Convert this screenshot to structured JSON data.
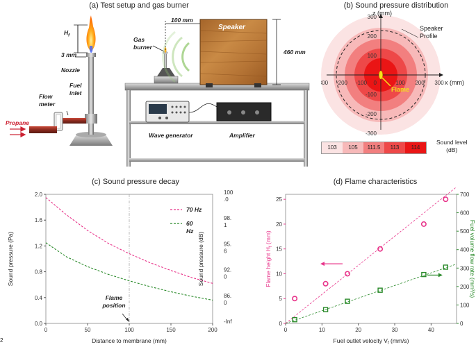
{
  "panel_a": {
    "title": "(a) Test setup and gas burner",
    "labels": {
      "hf": "H",
      "hf_sub": "f",
      "three_mm": "3 mm",
      "nozzle": "Nozzle",
      "flow_meter": "Flow\nmeter",
      "fuel_inlet": "Fuel\ninlet",
      "propane": "Propane",
      "gas_burner": "Gas\nburner",
      "hundred_mm": "100 mm",
      "speaker": "Speaker",
      "four_sixty_mm": "460 mm",
      "wave_generator": "Wave generator",
      "amplifier": "Amplifier"
    }
  },
  "panel_b": {
    "title": "(b) Sound pressure distribution",
    "z_axis_label": "z (mm)",
    "x_axis_label": "x (mm)",
    "speaker_profile": "Speaker\nProfile",
    "flame_label": "Flame",
    "legend_title": "Sound level\n(dB)",
    "levels": [
      "103",
      "105",
      "111.5",
      "113",
      "114"
    ],
    "level_colors": [
      "#fbe3e3",
      "#f7b9b9",
      "#f27f7f",
      "#ee4848",
      "#ea1515"
    ],
    "x_ticks": [
      "-300",
      "-200",
      "-100",
      "0",
      "100",
      "200",
      "300"
    ],
    "z_ticks": [
      "300",
      "200",
      "100",
      "0",
      "-100",
      "-200",
      "-300"
    ]
  },
  "panel_c": {
    "title": "(c) Sound pressure decay",
    "xlabel": "Distance to membrane (mm)",
    "ylabel_left": "Sound pressure (Pa)",
    "ylabel_right": "Sound pressure (dB)",
    "annotation": "Flame\nposition",
    "legend": [
      "70 Hz",
      "60\nHz"
    ],
    "right_ticks": [
      "100\n.0",
      "98.\n1",
      "95.\n6",
      "92.\n0",
      "86.\n0",
      "-Inf"
    ]
  },
  "panel_d": {
    "title": "(d) Flame characteristics",
    "xlabel": "Fuel outlet velocity V",
    "xlabel_sub": "f",
    "xlabel_unit": " (mm/s)",
    "ylabel_left": "Flame height H",
    "ylabel_left_sub": "f",
    "ylabel_left_unit": " (mm)",
    "ylabel_right": "Fuel volume flow rate (mm³/s)"
  },
  "corner_mark": "2",
  "chart_data": [
    {
      "type": "line",
      "title": "(c) Sound pressure decay",
      "xlabel": "Distance to membrane (mm)",
      "ylabel": "Sound pressure (Pa)",
      "ylabel_right": "Sound pressure (dB)",
      "xlim": [
        0,
        200
      ],
      "ylim": [
        0,
        2.0
      ],
      "x_ticks": [
        0,
        50,
        100,
        150,
        200
      ],
      "y_ticks": [
        0,
        0.4,
        0.8,
        1.2,
        1.6,
        2.0
      ],
      "x": [
        0,
        25,
        50,
        75,
        100,
        125,
        150,
        175,
        200
      ],
      "series": [
        {
          "name": "70 Hz",
          "color": "#e8348a",
          "values": [
            1.95,
            1.68,
            1.44,
            1.24,
            1.08,
            0.94,
            0.82,
            0.71,
            0.62
          ]
        },
        {
          "name": "60 Hz",
          "color": "#2a8a2a",
          "values": [
            1.25,
            1.03,
            0.88,
            0.76,
            0.66,
            0.57,
            0.49,
            0.42,
            0.36
          ]
        }
      ],
      "annotation": {
        "text": "Flame position",
        "x": 100
      }
    },
    {
      "type": "scatter",
      "title": "(d) Flame characteristics",
      "xlabel": "Fuel outlet velocity Vf (mm/s)",
      "ylabel": "Flame height Hf (mm)",
      "ylabel_right": "Fuel volume flow rate (mm³/s)",
      "xlim": [
        0,
        47
      ],
      "ylim": [
        0,
        26
      ],
      "ylim_right": [
        0,
        700
      ],
      "x_ticks": [
        0,
        10,
        20,
        30,
        40
      ],
      "y_ticks": [
        0,
        5,
        10,
        15,
        20,
        25
      ],
      "y_ticks_right": [
        0,
        100,
        200,
        300,
        400,
        500,
        600,
        700
      ],
      "series": [
        {
          "name": "Flame height",
          "axis": "left",
          "marker": "circle",
          "color": "#e8348a",
          "x": [
            2.5,
            11,
            17,
            26,
            38,
            44
          ],
          "values": [
            5,
            8,
            10,
            15,
            20,
            25
          ]
        },
        {
          "name": "Fuel volume flow rate",
          "axis": "right",
          "marker": "square",
          "color": "#2a8a2a",
          "x": [
            2.5,
            11,
            17,
            26,
            38,
            44
          ],
          "values": [
            20,
            75,
            120,
            180,
            265,
            305
          ]
        }
      ]
    }
  ]
}
